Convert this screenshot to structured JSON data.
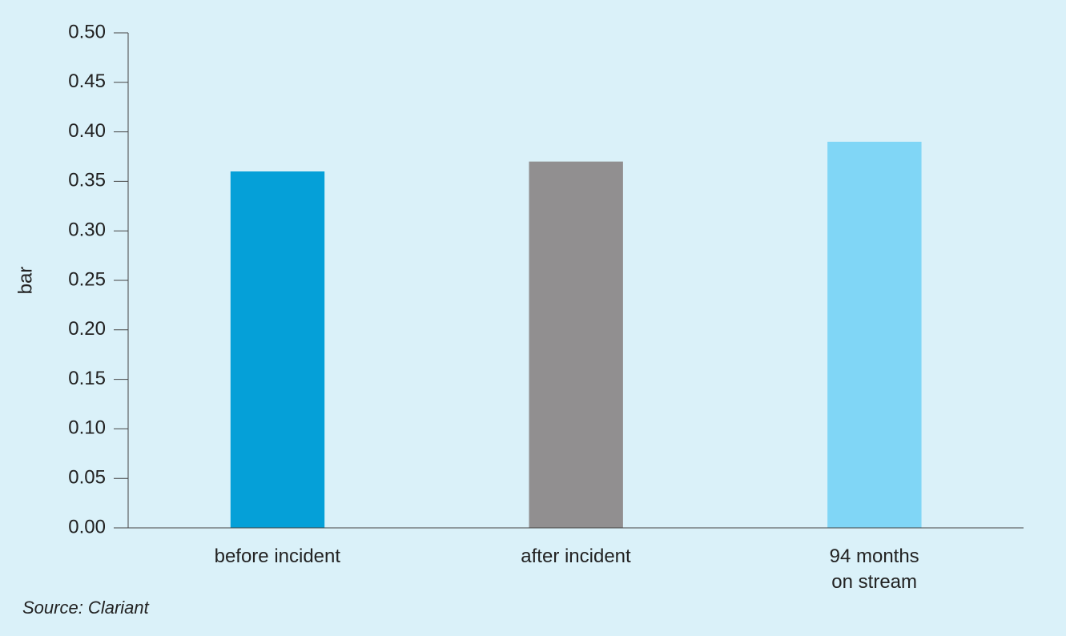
{
  "chart_data": {
    "type": "bar",
    "y_label": "bar",
    "source": "Source: Clariant",
    "categories": [
      "before incident",
      "after incident",
      "94 months\non stream"
    ],
    "values": [
      0.36,
      0.37,
      0.39
    ],
    "colors": [
      "#05a0d8",
      "#918f90",
      "#80d6f6"
    ],
    "ylim": [
      0,
      0.5
    ],
    "yticks": [
      {
        "value": 0,
        "label": "0.00"
      },
      0.05,
      {
        "value": 0.1,
        "label": "0.10"
      },
      0.15,
      {
        "value": 0.2,
        "label": "0.20"
      },
      0.25,
      {
        "value": 0.3,
        "label": "0.30"
      },
      0.35,
      {
        "value": 0.4,
        "label": "0.40"
      },
      0.45,
      {
        "value": 0.5,
        "label": "0.50"
      }
    ]
  }
}
